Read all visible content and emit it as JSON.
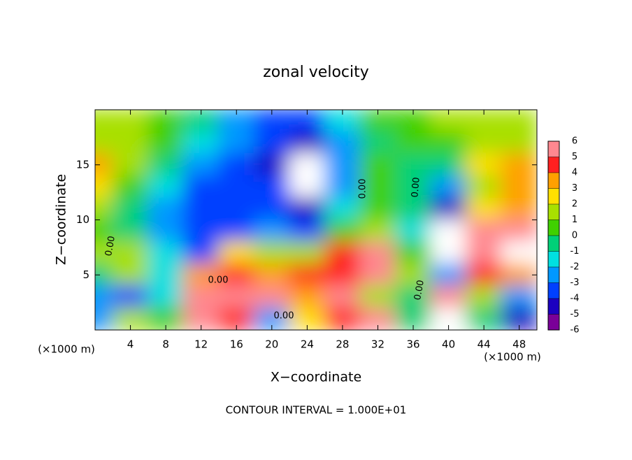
{
  "chart_data": {
    "type": "heatmap",
    "title": "zonal velocity",
    "x_label": "X−coordinate",
    "y_label": "Z−coordinate",
    "y_unit_label": "(×1000 m)",
    "x_unit_label": "(×1000 m)",
    "note": "CONTOUR INTERVAL = 1.000E+01",
    "contour_labels": [
      "0.00",
      "0.00",
      "0.00",
      "0.00",
      "0.00",
      "0.00"
    ],
    "xlim": [
      0,
      50
    ],
    "ylim": [
      0,
      20
    ],
    "xticks": [
      4,
      8,
      12,
      16,
      20,
      24,
      28,
      32,
      36,
      40,
      44,
      48
    ],
    "yticks": [
      5,
      10,
      15
    ],
    "x": [
      0,
      4,
      8,
      12,
      16,
      20,
      24,
      28,
      32,
      36,
      40,
      44,
      48
    ],
    "y": [
      19,
      17,
      15,
      13,
      11,
      9,
      7,
      5,
      3,
      1
    ],
    "z": [
      [
        1,
        1,
        0,
        -1,
        -3,
        -4,
        -4,
        -2,
        0,
        0,
        1,
        1,
        1
      ],
      [
        1,
        1,
        0,
        -2,
        -3,
        -4,
        -5,
        -3,
        -1,
        0,
        0,
        1,
        1
      ],
      [
        3,
        1,
        -1,
        -3,
        -4,
        -5,
        7,
        -3,
        0,
        -1,
        -1,
        2,
        3
      ],
      [
        2,
        0,
        -2,
        -4,
        -4,
        -4,
        7,
        -3,
        0,
        -1,
        -3,
        1,
        3
      ],
      [
        1,
        -1,
        -3,
        -4,
        -4,
        -4,
        -5,
        -2,
        0,
        -1,
        -5,
        2,
        3
      ],
      [
        0,
        -1,
        -3,
        -4,
        -4,
        -3,
        -4,
        0,
        1,
        -2,
        7,
        5,
        5
      ],
      [
        1,
        1,
        -2,
        -4,
        2,
        1,
        1,
        4,
        5,
        0,
        7,
        5,
        7
      ],
      [
        -1,
        1,
        -2,
        3,
        4,
        3,
        4,
        4,
        5,
        1,
        -3,
        4,
        3
      ],
      [
        -3,
        -4,
        -2,
        6,
        5,
        5,
        3,
        5,
        1,
        -1,
        5,
        1,
        -3
      ],
      [
        -3,
        1,
        0,
        5,
        4,
        -3,
        2,
        4,
        6,
        -1,
        7,
        -1,
        -5
      ]
    ],
    "colorbar_ticks": [
      -6,
      -5,
      -4,
      -3,
      -2,
      -1,
      0,
      1,
      2,
      3,
      4,
      5,
      6
    ],
    "colors": [
      "#7a0098",
      "#1c00c0",
      "#0040ff",
      "#0098ff",
      "#00e0e0",
      "#00d078",
      "#40d000",
      "#a8e000",
      "#ffe000",
      "#ffa000",
      "#ff2020",
      "#ff8890"
    ],
    "out_of_range_color": "#ffffff"
  }
}
